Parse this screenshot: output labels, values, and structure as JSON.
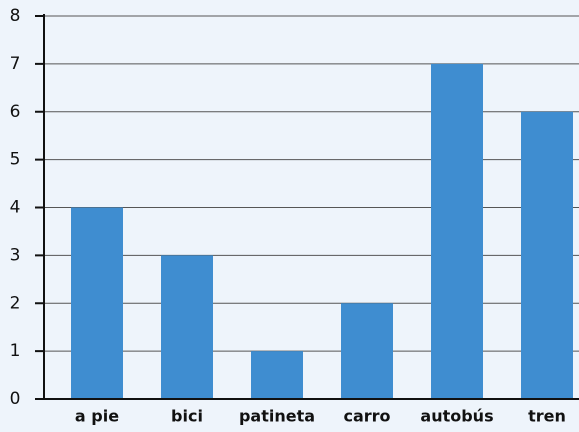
{
  "chart_data": {
    "type": "bar",
    "categories": [
      "a pie",
      "bici",
      "patineta",
      "carro",
      "autobús",
      "tren"
    ],
    "values": [
      4,
      3,
      1,
      2,
      7,
      6
    ],
    "color": "#3f8dd0",
    "ylim": [
      0,
      8
    ],
    "yticks": [
      0,
      1,
      2,
      3,
      4,
      5,
      6,
      7,
      8
    ],
    "grid": true
  }
}
